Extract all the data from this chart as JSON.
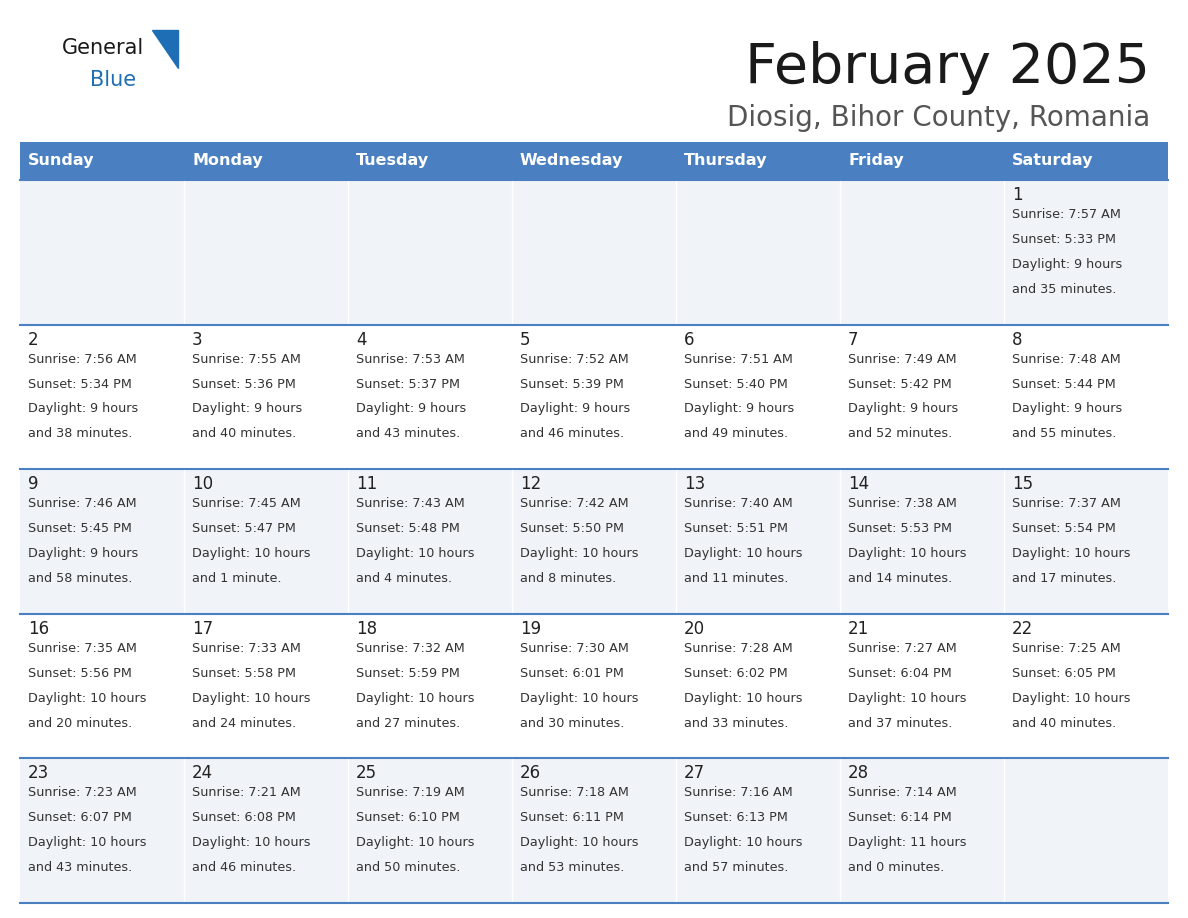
{
  "title": "February 2025",
  "subtitle": "Diosig, Bihor County, Romania",
  "header_color": "#4a7fc1",
  "header_text_color": "#FFFFFF",
  "days_of_week": [
    "Sunday",
    "Monday",
    "Tuesday",
    "Wednesday",
    "Thursday",
    "Friday",
    "Saturday"
  ],
  "cell_bg_even": "#f0f4f8",
  "cell_bg_odd": "#FFFFFF",
  "divider_color": "#4a7fc1",
  "text_color": "#333333",
  "number_color": "#222222",
  "logo_general_color": "#1a1a1a",
  "logo_blue_color": "#1e6eb5",
  "calendar": [
    [
      null,
      null,
      null,
      null,
      null,
      null,
      {
        "day": 1,
        "sunrise": "7:57 AM",
        "sunset": "5:33 PM",
        "daylight": "9 hours\nand 35 minutes."
      }
    ],
    [
      {
        "day": 2,
        "sunrise": "7:56 AM",
        "sunset": "5:34 PM",
        "daylight": "9 hours\nand 38 minutes."
      },
      {
        "day": 3,
        "sunrise": "7:55 AM",
        "sunset": "5:36 PM",
        "daylight": "9 hours\nand 40 minutes."
      },
      {
        "day": 4,
        "sunrise": "7:53 AM",
        "sunset": "5:37 PM",
        "daylight": "9 hours\nand 43 minutes."
      },
      {
        "day": 5,
        "sunrise": "7:52 AM",
        "sunset": "5:39 PM",
        "daylight": "9 hours\nand 46 minutes."
      },
      {
        "day": 6,
        "sunrise": "7:51 AM",
        "sunset": "5:40 PM",
        "daylight": "9 hours\nand 49 minutes."
      },
      {
        "day": 7,
        "sunrise": "7:49 AM",
        "sunset": "5:42 PM",
        "daylight": "9 hours\nand 52 minutes."
      },
      {
        "day": 8,
        "sunrise": "7:48 AM",
        "sunset": "5:44 PM",
        "daylight": "9 hours\nand 55 minutes."
      }
    ],
    [
      {
        "day": 9,
        "sunrise": "7:46 AM",
        "sunset": "5:45 PM",
        "daylight": "9 hours\nand 58 minutes."
      },
      {
        "day": 10,
        "sunrise": "7:45 AM",
        "sunset": "5:47 PM",
        "daylight": "10 hours\nand 1 minute."
      },
      {
        "day": 11,
        "sunrise": "7:43 AM",
        "sunset": "5:48 PM",
        "daylight": "10 hours\nand 4 minutes."
      },
      {
        "day": 12,
        "sunrise": "7:42 AM",
        "sunset": "5:50 PM",
        "daylight": "10 hours\nand 8 minutes."
      },
      {
        "day": 13,
        "sunrise": "7:40 AM",
        "sunset": "5:51 PM",
        "daylight": "10 hours\nand 11 minutes."
      },
      {
        "day": 14,
        "sunrise": "7:38 AM",
        "sunset": "5:53 PM",
        "daylight": "10 hours\nand 14 minutes."
      },
      {
        "day": 15,
        "sunrise": "7:37 AM",
        "sunset": "5:54 PM",
        "daylight": "10 hours\nand 17 minutes."
      }
    ],
    [
      {
        "day": 16,
        "sunrise": "7:35 AM",
        "sunset": "5:56 PM",
        "daylight": "10 hours\nand 20 minutes."
      },
      {
        "day": 17,
        "sunrise": "7:33 AM",
        "sunset": "5:58 PM",
        "daylight": "10 hours\nand 24 minutes."
      },
      {
        "day": 18,
        "sunrise": "7:32 AM",
        "sunset": "5:59 PM",
        "daylight": "10 hours\nand 27 minutes."
      },
      {
        "day": 19,
        "sunrise": "7:30 AM",
        "sunset": "6:01 PM",
        "daylight": "10 hours\nand 30 minutes."
      },
      {
        "day": 20,
        "sunrise": "7:28 AM",
        "sunset": "6:02 PM",
        "daylight": "10 hours\nand 33 minutes."
      },
      {
        "day": 21,
        "sunrise": "7:27 AM",
        "sunset": "6:04 PM",
        "daylight": "10 hours\nand 37 minutes."
      },
      {
        "day": 22,
        "sunrise": "7:25 AM",
        "sunset": "6:05 PM",
        "daylight": "10 hours\nand 40 minutes."
      }
    ],
    [
      {
        "day": 23,
        "sunrise": "7:23 AM",
        "sunset": "6:07 PM",
        "daylight": "10 hours\nand 43 minutes."
      },
      {
        "day": 24,
        "sunrise": "7:21 AM",
        "sunset": "6:08 PM",
        "daylight": "10 hours\nand 46 minutes."
      },
      {
        "day": 25,
        "sunrise": "7:19 AM",
        "sunset": "6:10 PM",
        "daylight": "10 hours\nand 50 minutes."
      },
      {
        "day": 26,
        "sunrise": "7:18 AM",
        "sunset": "6:11 PM",
        "daylight": "10 hours\nand 53 minutes."
      },
      {
        "day": 27,
        "sunrise": "7:16 AM",
        "sunset": "6:13 PM",
        "daylight": "10 hours\nand 57 minutes."
      },
      {
        "day": 28,
        "sunrise": "7:14 AM",
        "sunset": "6:14 PM",
        "daylight": "11 hours\nand 0 minutes."
      },
      null
    ]
  ]
}
